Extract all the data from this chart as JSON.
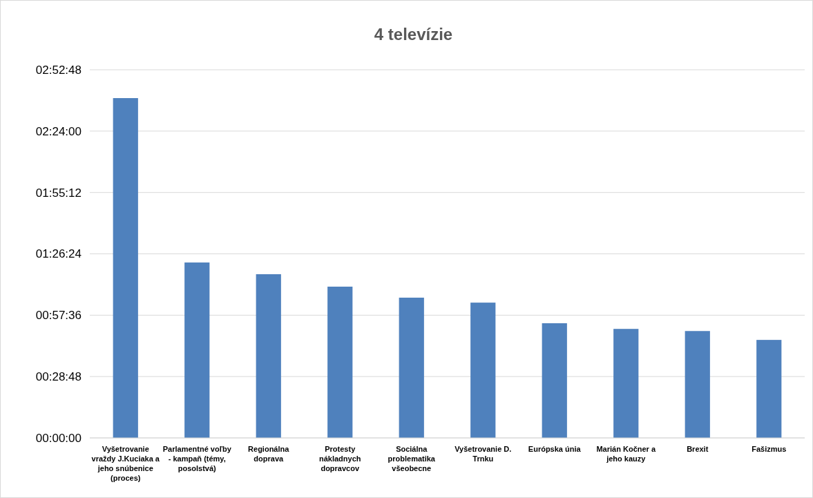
{
  "chart_data": {
    "type": "bar",
    "title": "4 televízie",
    "categories": [
      "Vyšetrovanie vraždy J.Kuciaka a jeho snúbenice (proces)",
      "Parlamentné voľby - kampaň (témy, posolstvá)",
      "Regionálna doprava",
      "Protesty nákladnych dopravcov",
      "Sociálna problematika všeobecne",
      "Vyšetrovanie D. Trnku",
      "Európska únia",
      "Marián Kočner a jeho kauzy",
      "Brexit",
      "Fašizmus"
    ],
    "values": [
      9570,
      4940,
      4610,
      4260,
      3950,
      3810,
      3230,
      3070,
      3010,
      2760
    ],
    "color": "#4f81bd",
    "ylim": [
      0,
      10368
    ],
    "yticks": [
      {
        "value": 0,
        "label": "00:00:00"
      },
      {
        "value": 1728,
        "label": "00:28:48"
      },
      {
        "value": 3456,
        "label": "00:57:36"
      },
      {
        "value": 5184,
        "label": "01:26:24"
      },
      {
        "value": 6912,
        "label": "01:55:12"
      },
      {
        "value": 8640,
        "label": "02:24:00"
      },
      {
        "value": 10368,
        "label": "02:52:48"
      }
    ],
    "grid": "y"
  }
}
